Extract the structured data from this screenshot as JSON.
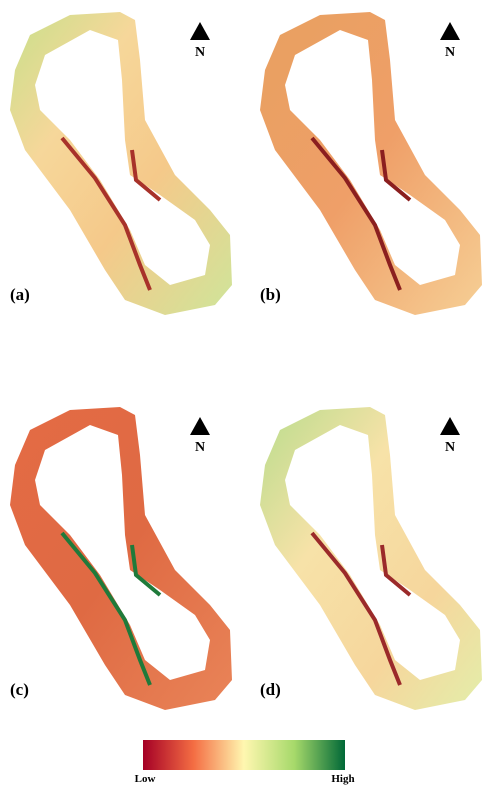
{
  "panels": [
    {
      "label": "(a)",
      "north": "N"
    },
    {
      "label": "(b)",
      "north": "N"
    },
    {
      "label": "(c)",
      "north": "N"
    },
    {
      "label": "(d)",
      "north": "N"
    }
  ],
  "legend": {
    "low": "Low",
    "high": "High"
  }
}
